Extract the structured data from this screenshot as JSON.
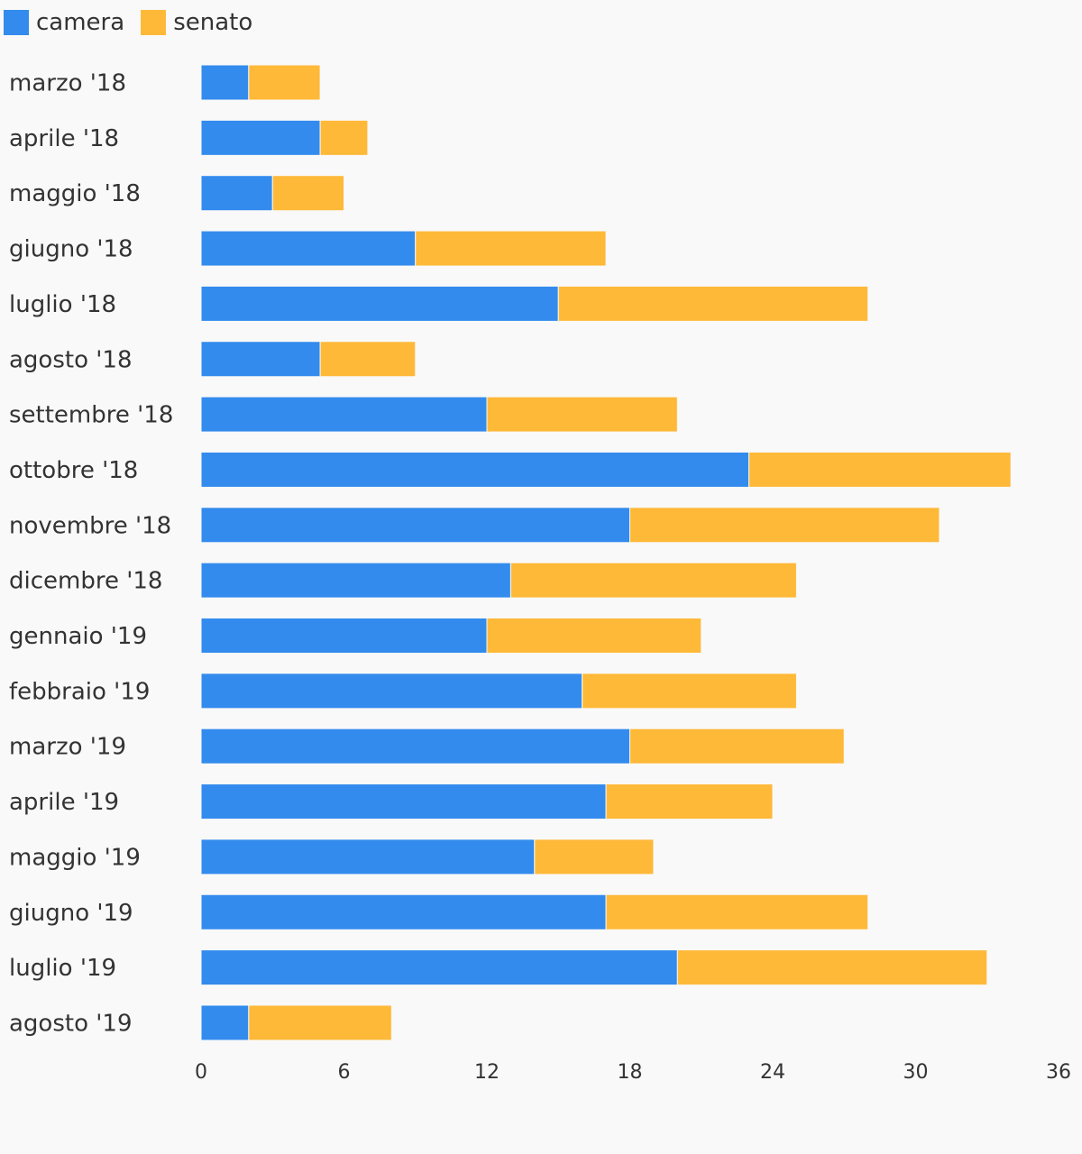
{
  "chart_data": {
    "type": "bar",
    "orientation": "horizontal",
    "stacked": true,
    "categories": [
      "marzo '18",
      "aprile '18",
      "maggio '18",
      "giugno '18",
      "luglio '18",
      "agosto '18",
      "settembre '18",
      "ottobre '18",
      "novembre '18",
      "dicembre '18",
      "gennaio '19",
      "febbraio '19",
      "marzo '19",
      "aprile '19",
      "maggio '19",
      "giugno '19",
      "luglio '19",
      "agosto '19"
    ],
    "series": [
      {
        "name": "camera",
        "color": "#338bed",
        "values": [
          2,
          5,
          3,
          9,
          15,
          5,
          12,
          23,
          18,
          13,
          12,
          16,
          18,
          17,
          14,
          17,
          20,
          2
        ]
      },
      {
        "name": "senato",
        "color": "#ffb938",
        "values": [
          3,
          2,
          3,
          8,
          13,
          4,
          8,
          11,
          13,
          12,
          9,
          9,
          9,
          7,
          5,
          11,
          13,
          6
        ]
      }
    ],
    "xlim": [
      0,
      36
    ],
    "xticks": [
      0,
      6,
      12,
      18,
      24,
      30,
      36
    ],
    "grid": false,
    "legend_position": "top-left"
  }
}
